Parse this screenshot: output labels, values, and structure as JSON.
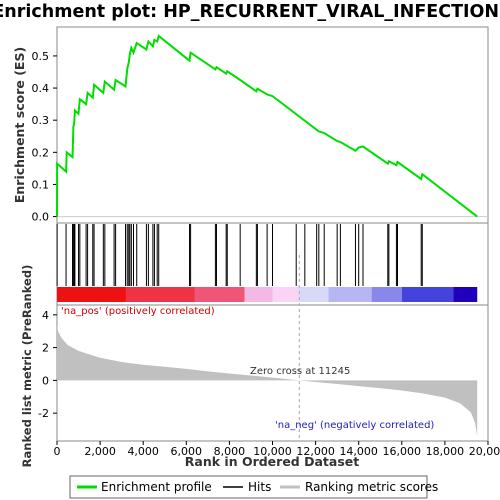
{
  "chart_data": {
    "type": "line",
    "title": "Enrichment plot: HP_RECURRENT_VIRAL_INFECTIONS",
    "es_panel": {
      "ylabel": "Enrichment score (ES)",
      "yticks": [
        "0.0",
        "0.1",
        "0.2",
        "0.3",
        "0.4",
        "0.5"
      ],
      "ylim": [
        -0.02,
        0.59
      ],
      "series_color": "#00dd00",
      "profile": [
        [
          0,
          0.0
        ],
        [
          5,
          0.165
        ],
        [
          420,
          0.14
        ],
        [
          450,
          0.2
        ],
        [
          720,
          0.185
        ],
        [
          760,
          0.28
        ],
        [
          800,
          0.29
        ],
        [
          830,
          0.33
        ],
        [
          1000,
          0.32
        ],
        [
          1060,
          0.365
        ],
        [
          1350,
          0.35
        ],
        [
          1420,
          0.385
        ],
        [
          1660,
          0.37
        ],
        [
          1720,
          0.41
        ],
        [
          2150,
          0.385
        ],
        [
          2220,
          0.42
        ],
        [
          2650,
          0.395
        ],
        [
          2720,
          0.425
        ],
        [
          3180,
          0.405
        ],
        [
          3260,
          0.46
        ],
        [
          3330,
          0.48
        ],
        [
          3380,
          0.505
        ],
        [
          3450,
          0.525
        ],
        [
          3550,
          0.51
        ],
        [
          3700,
          0.54
        ],
        [
          4150,
          0.52
        ],
        [
          4240,
          0.545
        ],
        [
          4450,
          0.53
        ],
        [
          4520,
          0.55
        ],
        [
          4650,
          0.545
        ],
        [
          4720,
          0.562
        ],
        [
          6150,
          0.485
        ],
        [
          6200,
          0.51
        ],
        [
          7350,
          0.458
        ],
        [
          7400,
          0.465
        ],
        [
          7850,
          0.445
        ],
        [
          7900,
          0.452
        ],
        [
          8500,
          0.425
        ],
        [
          9250,
          0.39
        ],
        [
          9300,
          0.398
        ],
        [
          9750,
          0.38
        ],
        [
          10000,
          0.375
        ],
        [
          12050,
          0.27
        ],
        [
          12150,
          0.265
        ],
        [
          12400,
          0.26
        ],
        [
          13000,
          0.235
        ],
        [
          13150,
          0.232
        ],
        [
          13850,
          0.205
        ],
        [
          14000,
          0.215
        ],
        [
          14200,
          0.218
        ],
        [
          15350,
          0.165
        ],
        [
          15400,
          0.172
        ],
        [
          15750,
          0.16
        ],
        [
          15800,
          0.17
        ],
        [
          16900,
          0.117
        ],
        [
          16950,
          0.132
        ],
        [
          19500,
          0.0
        ]
      ]
    },
    "hits_panel": {
      "hit_positions": [
        5,
        420,
        720,
        760,
        800,
        830,
        1000,
        1060,
        1350,
        1420,
        1660,
        1720,
        2150,
        2220,
        2650,
        2720,
        3180,
        3260,
        3330,
        3380,
        3450,
        3550,
        3700,
        4150,
        4240,
        4450,
        4520,
        4650,
        4720,
        6150,
        6200,
        7350,
        7400,
        7850,
        7900,
        8500,
        9250,
        9300,
        9750,
        10000,
        11100,
        11500,
        12050,
        12150,
        12400,
        13000,
        13150,
        13850,
        14000,
        14200,
        15350,
        15400,
        15750,
        15800,
        16900,
        16950
      ]
    },
    "rank_panel": {
      "ylabel": "Ranked list metric (PreRanked)",
      "yticks": [
        "4",
        "2",
        "0",
        "-2"
      ],
      "ylim": [
        -3.7,
        4.6
      ],
      "metric_profile": [
        [
          0,
          3.4
        ],
        [
          50,
          3.0
        ],
        [
          200,
          2.6
        ],
        [
          500,
          2.15
        ],
        [
          1000,
          1.8
        ],
        [
          2000,
          1.38
        ],
        [
          3000,
          1.12
        ],
        [
          4000,
          0.95
        ],
        [
          5000,
          0.83
        ],
        [
          6000,
          0.7
        ],
        [
          7000,
          0.55
        ],
        [
          8000,
          0.42
        ],
        [
          9000,
          0.3
        ],
        [
          10000,
          0.17
        ],
        [
          11245,
          0.0
        ],
        [
          12000,
          -0.1
        ],
        [
          13000,
          -0.22
        ],
        [
          14000,
          -0.35
        ],
        [
          15000,
          -0.48
        ],
        [
          16000,
          -0.62
        ],
        [
          17000,
          -0.8
        ],
        [
          18000,
          -1.05
        ],
        [
          18700,
          -1.4
        ],
        [
          19200,
          -1.95
        ],
        [
          19400,
          -2.6
        ],
        [
          19500,
          -3.4
        ]
      ],
      "pos_label": "'na_pos' (positively correlated)",
      "neg_label": "'na_neg' (negatively correlated)",
      "zero_cross_label": "Zero cross at 11245",
      "zero_cross": 11245
    },
    "xlabel": "Rank in Ordered Dataset",
    "xlim": [
      0,
      20000
    ],
    "xticks": [
      "0",
      "2,000",
      "4,000",
      "6,000",
      "8,000",
      "10,000",
      "12,000",
      "14,000",
      "16,000",
      "18,000",
      "20,000"
    ],
    "xtick_values": [
      0,
      2000,
      4000,
      6000,
      8000,
      10000,
      12000,
      14000,
      16000,
      18000,
      20000
    ],
    "total_ranks": 19500,
    "legend": [
      {
        "label": "Enrichment profile",
        "color": "#00dd00"
      },
      {
        "label": "Hits",
        "color": "#000000"
      },
      {
        "label": "Ranking metric scores",
        "color": "#c0c0c0"
      }
    ],
    "colorbar": [
      {
        "from": 0,
        "to": 3200,
        "color": "#ee1111"
      },
      {
        "from": 3200,
        "to": 6400,
        "color": "#ee3344"
      },
      {
        "from": 6400,
        "to": 8700,
        "color": "#ee5577"
      },
      {
        "from": 8700,
        "to": 10000,
        "color": "#f4b8e4"
      },
      {
        "from": 10000,
        "to": 11200,
        "color": "#fad4f4"
      },
      {
        "from": 11200,
        "to": 12600,
        "color": "#d8d8f8"
      },
      {
        "from": 12600,
        "to": 14600,
        "color": "#b6b6f2"
      },
      {
        "from": 14600,
        "to": 16000,
        "color": "#8888ea"
      },
      {
        "from": 16000,
        "to": 18400,
        "color": "#4444dd"
      },
      {
        "from": 18400,
        "to": 19500,
        "color": "#2200bb"
      }
    ]
  }
}
